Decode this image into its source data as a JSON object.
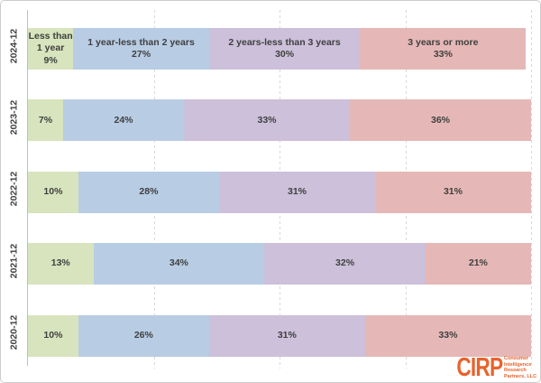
{
  "chart_data": {
    "type": "bar",
    "variant": "horizontal-stacked",
    "title": "",
    "xlabel": "",
    "ylabel": "",
    "xlim": [
      0,
      100
    ],
    "grid": "dashed-vertical",
    "gridlines_pct": [
      25,
      50,
      75,
      100
    ],
    "legend_position": "inline-first-row",
    "categories": [
      "2024-12",
      "2023-12",
      "2022-12",
      "2021-12",
      "2020-12"
    ],
    "series": [
      {
        "name": "Less than 1 year",
        "color": "#d7e4bd",
        "values": [
          9,
          7,
          10,
          13,
          10
        ]
      },
      {
        "name": "1 year-less than 2 years",
        "color": "#b8cce4",
        "values": [
          27,
          24,
          28,
          34,
          26
        ]
      },
      {
        "name": "2 years-less than 3 years",
        "color": "#ccc0da",
        "values": [
          30,
          33,
          31,
          32,
          31
        ]
      },
      {
        "name": "3 years or more",
        "color": "#e5b8b7",
        "values": [
          33,
          36,
          31,
          21,
          33
        ]
      }
    ],
    "rows": [
      {
        "category": "2024-12",
        "segments": [
          {
            "pct": 9,
            "label_lines": [
              "Less than",
              "1 year",
              "9%"
            ]
          },
          {
            "pct": 27,
            "label_lines": [
              "1 year-less than 2 years",
              "27%"
            ]
          },
          {
            "pct": 30,
            "label_lines": [
              "2 years-less than 3 years",
              "30%"
            ]
          },
          {
            "pct": 33,
            "label_lines": [
              "3 years or more",
              "33%"
            ]
          }
        ]
      },
      {
        "category": "2023-12",
        "segments": [
          {
            "pct": 7,
            "label_lines": [
              "7%"
            ]
          },
          {
            "pct": 24,
            "label_lines": [
              "24%"
            ]
          },
          {
            "pct": 33,
            "label_lines": [
              "33%"
            ]
          },
          {
            "pct": 36,
            "label_lines": [
              "36%"
            ]
          }
        ]
      },
      {
        "category": "2022-12",
        "segments": [
          {
            "pct": 10,
            "label_lines": [
              "10%"
            ]
          },
          {
            "pct": 28,
            "label_lines": [
              "28%"
            ]
          },
          {
            "pct": 31,
            "label_lines": [
              "31%"
            ]
          },
          {
            "pct": 31,
            "label_lines": [
              "31%"
            ]
          }
        ]
      },
      {
        "category": "2021-12",
        "segments": [
          {
            "pct": 13,
            "label_lines": [
              "13%"
            ]
          },
          {
            "pct": 34,
            "label_lines": [
              "34%"
            ]
          },
          {
            "pct": 32,
            "label_lines": [
              "32%"
            ]
          },
          {
            "pct": 21,
            "label_lines": [
              "21%"
            ]
          }
        ]
      },
      {
        "category": "2020-12",
        "segments": [
          {
            "pct": 10,
            "label_lines": [
              "10%"
            ]
          },
          {
            "pct": 26,
            "label_lines": [
              "26%"
            ]
          },
          {
            "pct": 31,
            "label_lines": [
              "31%"
            ]
          },
          {
            "pct": 33,
            "label_lines": [
              "33%"
            ]
          }
        ]
      }
    ],
    "style": {
      "label_color": "#3f3f3f",
      "grid_color": "#d9d9d9",
      "axis_color": "#bfbfbf"
    }
  },
  "logo": {
    "name": "CIRP",
    "lines": [
      "Consumer",
      "Intelligence",
      "Research",
      "Partners, LLC"
    ],
    "color": "#e8632c"
  }
}
